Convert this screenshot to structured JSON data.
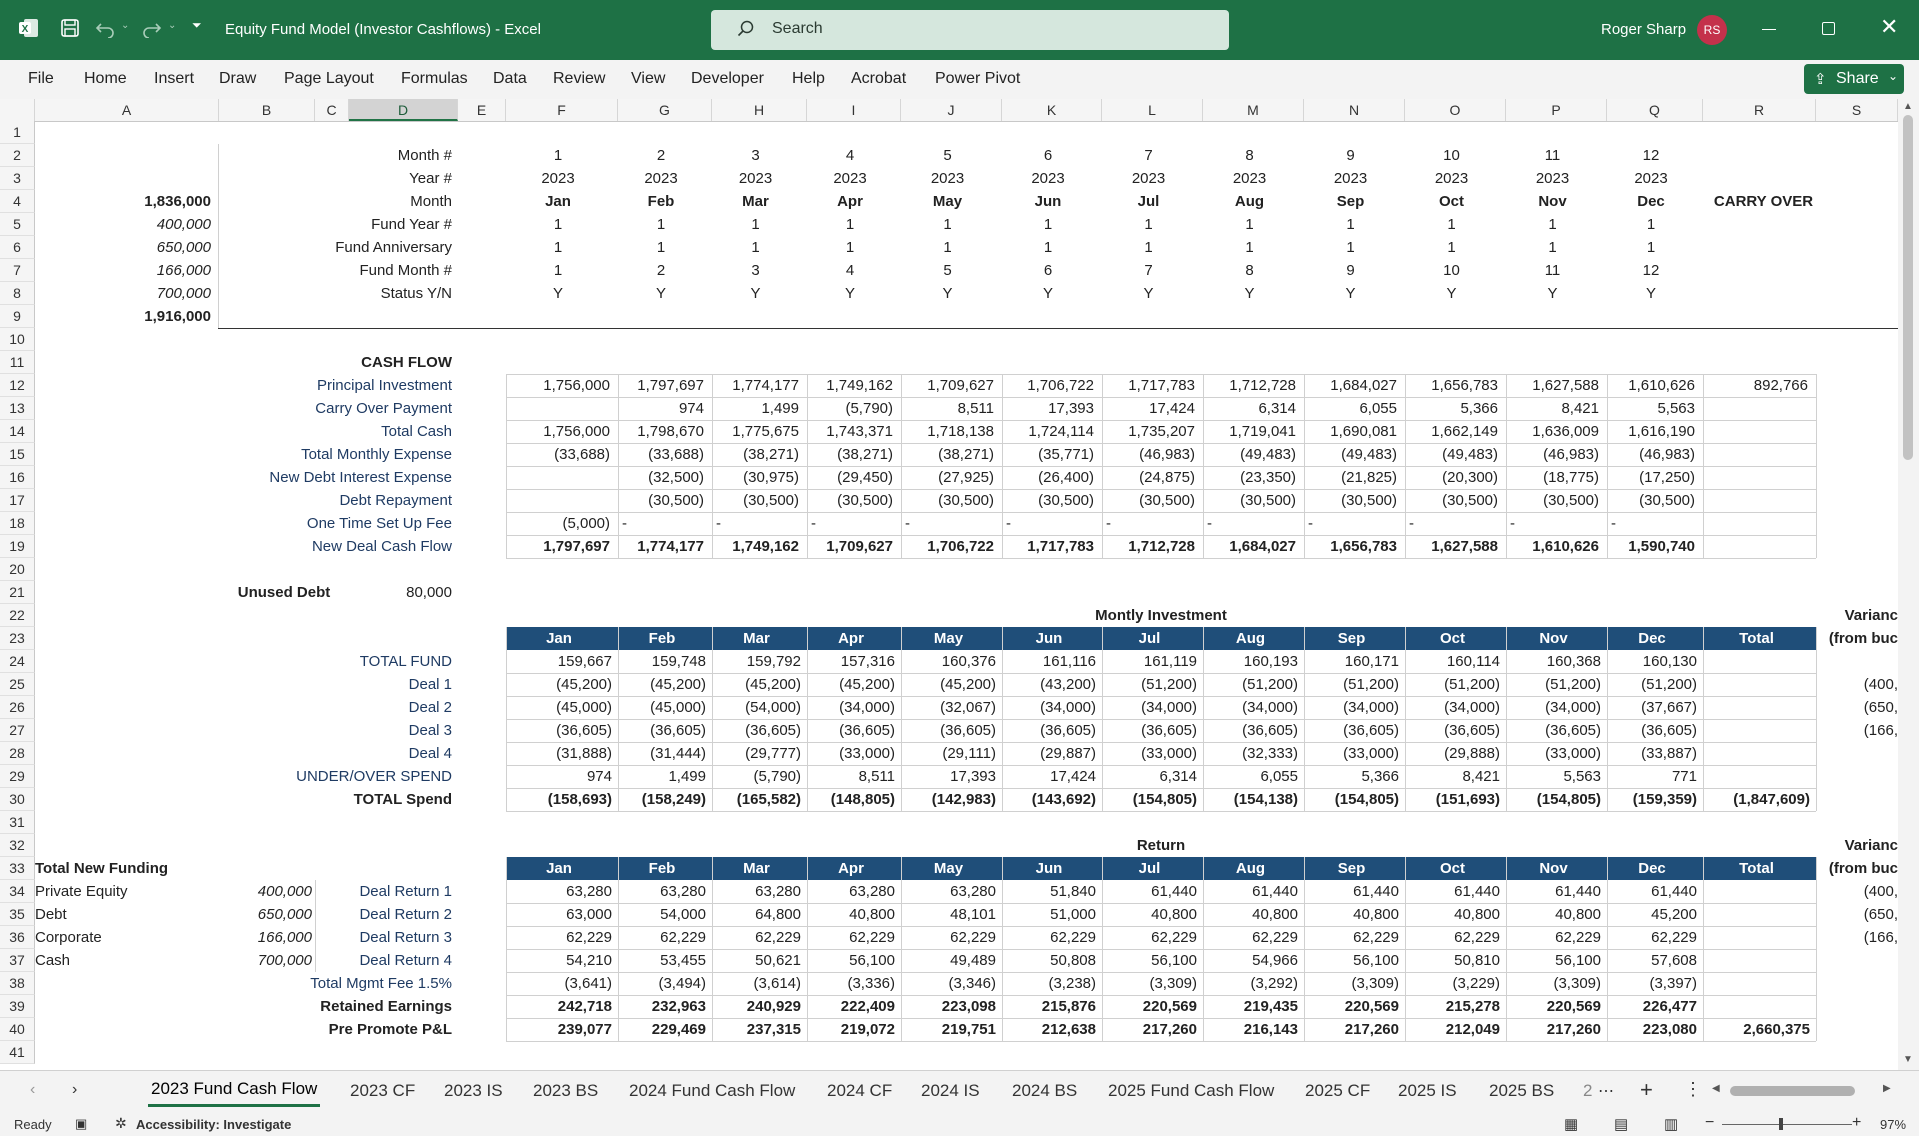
{
  "window": {
    "title": "Equity Fund Model (Investor Cashflows)  -  Excel",
    "user_name": "Roger Sharp",
    "user_initials": "RS",
    "search_placeholder": "Search"
  },
  "ribbon": {
    "tabs": [
      "File",
      "Home",
      "Insert",
      "Draw",
      "Page Layout",
      "Formulas",
      "Data",
      "Review",
      "View",
      "Developer",
      "Help",
      "Acrobat",
      "Power Pivot"
    ],
    "share_label": "Share"
  },
  "columns": [
    "A",
    "B",
    "C",
    "D",
    "E",
    "F",
    "G",
    "H",
    "I",
    "J",
    "K",
    "L",
    "M",
    "N",
    "O",
    "P",
    "Q",
    "R",
    "S"
  ],
  "row_numbers": [
    "1",
    "2",
    "3",
    "4",
    "5",
    "6",
    "7",
    "8",
    "9",
    "10",
    "11",
    "12",
    "13",
    "14",
    "15",
    "16",
    "17",
    "18",
    "19",
    "20",
    "21",
    "22",
    "23",
    "24",
    "25",
    "26",
    "27",
    "28",
    "29",
    "30",
    "31",
    "32",
    "33",
    "34",
    "35",
    "36",
    "37",
    "38",
    "39",
    "40",
    "41"
  ],
  "header_block": {
    "labels": [
      "Month #",
      "Year #",
      "Month",
      "Fund Year #",
      "Fund Anniversary",
      "Fund Month #",
      "Status Y/N"
    ],
    "a_values": [
      "1,836,000",
      "400,000",
      "650,000",
      "166,000",
      "700,000",
      "1,916,000"
    ],
    "month_num": [
      "1",
      "2",
      "3",
      "4",
      "5",
      "6",
      "7",
      "8",
      "9",
      "10",
      "11",
      "12"
    ],
    "year": [
      "2023",
      "2023",
      "2023",
      "2023",
      "2023",
      "2023",
      "2023",
      "2023",
      "2023",
      "2023",
      "2023",
      "2023"
    ],
    "month": [
      "Jan",
      "Feb",
      "Mar",
      "Apr",
      "May",
      "Jun",
      "Jul",
      "Aug",
      "Sep",
      "Oct",
      "Nov",
      "Dec"
    ],
    "fund_year": [
      "1",
      "1",
      "1",
      "1",
      "1",
      "1",
      "1",
      "1",
      "1",
      "1",
      "1",
      "1"
    ],
    "fund_anniv": [
      "1",
      "1",
      "1",
      "1",
      "1",
      "1",
      "1",
      "1",
      "1",
      "1",
      "1",
      "1"
    ],
    "fund_month": [
      "1",
      "2",
      "3",
      "4",
      "5",
      "6",
      "7",
      "8",
      "9",
      "10",
      "11",
      "12"
    ],
    "status": [
      "Y",
      "Y",
      "Y",
      "Y",
      "Y",
      "Y",
      "Y",
      "Y",
      "Y",
      "Y",
      "Y",
      "Y"
    ],
    "carry_over": "CARRY OVER"
  },
  "cash_flow": {
    "title": "CASH FLOW",
    "rows": [
      {
        "label": "Principal Investment",
        "values": [
          "1,756,000",
          "1,797,697",
          "1,774,177",
          "1,749,162",
          "1,709,627",
          "1,706,722",
          "1,717,783",
          "1,712,728",
          "1,684,027",
          "1,656,783",
          "1,627,588",
          "1,610,626",
          "892,766"
        ]
      },
      {
        "label": "Carry Over Payment",
        "values": [
          "",
          "974",
          "1,499",
          "(5,790)",
          "8,511",
          "17,393",
          "17,424",
          "6,314",
          "6,055",
          "5,366",
          "8,421",
          "5,563",
          ""
        ]
      },
      {
        "label": "Total Cash",
        "values": [
          "1,756,000",
          "1,798,670",
          "1,775,675",
          "1,743,371",
          "1,718,138",
          "1,724,114",
          "1,735,207",
          "1,719,041",
          "1,690,081",
          "1,662,149",
          "1,636,009",
          "1,616,190",
          ""
        ]
      },
      {
        "label": "Total Monthly Expense",
        "values": [
          "(33,688)",
          "(33,688)",
          "(38,271)",
          "(38,271)",
          "(38,271)",
          "(35,771)",
          "(46,983)",
          "(49,483)",
          "(49,483)",
          "(49,483)",
          "(46,983)",
          "(46,983)",
          ""
        ]
      },
      {
        "label": "New Debt Interest Expense",
        "values": [
          "",
          "(32,500)",
          "(30,975)",
          "(29,450)",
          "(27,925)",
          "(26,400)",
          "(24,875)",
          "(23,350)",
          "(21,825)",
          "(20,300)",
          "(18,775)",
          "(17,250)",
          ""
        ]
      },
      {
        "label": "Debt Repayment",
        "values": [
          "",
          "(30,500)",
          "(30,500)",
          "(30,500)",
          "(30,500)",
          "(30,500)",
          "(30,500)",
          "(30,500)",
          "(30,500)",
          "(30,500)",
          "(30,500)",
          "(30,500)",
          ""
        ]
      },
      {
        "label": "One Time Set Up Fee",
        "values": [
          "(5,000)",
          "-",
          "-",
          "-",
          "-",
          "-",
          "-",
          "-",
          "-",
          "-",
          "-",
          "-",
          ""
        ]
      },
      {
        "label": "New Deal Cash Flow",
        "values": [
          "1,797,697",
          "1,774,177",
          "1,749,162",
          "1,709,627",
          "1,706,722",
          "1,717,783",
          "1,712,728",
          "1,684,027",
          "1,656,783",
          "1,627,588",
          "1,610,626",
          "1,590,740",
          ""
        ]
      }
    ],
    "unused_debt_label": "Unused Debt",
    "unused_debt_value": "80,000"
  },
  "investment": {
    "title": "Montly Investment",
    "variance_label": "Varianc",
    "variance_sub": "(from buc",
    "header": [
      "Jan",
      "Feb",
      "Mar",
      "Apr",
      "May",
      "Jun",
      "Jul",
      "Aug",
      "Sep",
      "Oct",
      "Nov",
      "Dec",
      "Total"
    ],
    "rows": [
      {
        "label": "TOTAL FUND",
        "values": [
          "159,667",
          "159,748",
          "159,792",
          "157,316",
          "160,376",
          "161,116",
          "161,119",
          "160,193",
          "160,171",
          "160,114",
          "160,368",
          "160,130",
          ""
        ],
        "variance": ""
      },
      {
        "label": "Deal 1",
        "values": [
          "(45,200)",
          "(45,200)",
          "(45,200)",
          "(45,200)",
          "(45,200)",
          "(43,200)",
          "(51,200)",
          "(51,200)",
          "(51,200)",
          "(51,200)",
          "(51,200)",
          "(51,200)",
          ""
        ],
        "variance": "(400,"
      },
      {
        "label": "Deal 2",
        "values": [
          "(45,000)",
          "(45,000)",
          "(54,000)",
          "(34,000)",
          "(32,067)",
          "(34,000)",
          "(34,000)",
          "(34,000)",
          "(34,000)",
          "(34,000)",
          "(34,000)",
          "(37,667)",
          ""
        ],
        "variance": "(650,"
      },
      {
        "label": "Deal 3",
        "values": [
          "(36,605)",
          "(36,605)",
          "(36,605)",
          "(36,605)",
          "(36,605)",
          "(36,605)",
          "(36,605)",
          "(36,605)",
          "(36,605)",
          "(36,605)",
          "(36,605)",
          "(36,605)",
          ""
        ],
        "variance": "(166,"
      },
      {
        "label": "Deal 4",
        "values": [
          "(31,888)",
          "(31,444)",
          "(29,777)",
          "(33,000)",
          "(29,111)",
          "(29,887)",
          "(33,000)",
          "(32,333)",
          "(33,000)",
          "(29,888)",
          "(33,000)",
          "(33,887)",
          ""
        ],
        "variance": ""
      },
      {
        "label": "UNDER/OVER SPEND",
        "values": [
          "974",
          "1,499",
          "(5,790)",
          "8,511",
          "17,393",
          "17,424",
          "6,314",
          "6,055",
          "5,366",
          "8,421",
          "5,563",
          "771",
          ""
        ],
        "variance": ""
      },
      {
        "label": "TOTAL Spend",
        "values": [
          "(158,693)",
          "(158,249)",
          "(165,582)",
          "(148,805)",
          "(142,983)",
          "(143,692)",
          "(154,805)",
          "(154,138)",
          "(154,805)",
          "(151,693)",
          "(154,805)",
          "(159,359)",
          "(1,847,609)"
        ],
        "variance": ""
      }
    ]
  },
  "returns": {
    "title": "Return",
    "variance_label": "Varianc",
    "variance_sub": "(from buc",
    "header": [
      "Jan",
      "Feb",
      "Mar",
      "Apr",
      "May",
      "Jun",
      "Jul",
      "Aug",
      "Sep",
      "Oct",
      "Nov",
      "Dec",
      "Total"
    ],
    "rows": [
      {
        "label": "Deal Return 1",
        "values": [
          "63,280",
          "63,280",
          "63,280",
          "63,280",
          "63,280",
          "51,840",
          "61,440",
          "61,440",
          "61,440",
          "61,440",
          "61,440",
          "61,440",
          ""
        ],
        "variance": "(400,"
      },
      {
        "label": "Deal Return 2",
        "values": [
          "63,000",
          "54,000",
          "64,800",
          "40,800",
          "48,101",
          "51,000",
          "40,800",
          "40,800",
          "40,800",
          "40,800",
          "40,800",
          "45,200",
          ""
        ],
        "variance": "(650,"
      },
      {
        "label": "Deal Return 3",
        "values": [
          "62,229",
          "62,229",
          "62,229",
          "62,229",
          "62,229",
          "62,229",
          "62,229",
          "62,229",
          "62,229",
          "62,229",
          "62,229",
          "62,229",
          ""
        ],
        "variance": "(166,"
      },
      {
        "label": "Deal Return 4",
        "values": [
          "54,210",
          "53,455",
          "50,621",
          "56,100",
          "49,489",
          "50,808",
          "56,100",
          "54,966",
          "56,100",
          "50,810",
          "56,100",
          "57,608",
          ""
        ],
        "variance": ""
      },
      {
        "label": "Total Mgmt Fee 1.5%",
        "values": [
          "(3,641)",
          "(3,494)",
          "(3,614)",
          "(3,336)",
          "(3,346)",
          "(3,238)",
          "(3,309)",
          "(3,292)",
          "(3,309)",
          "(3,229)",
          "(3,309)",
          "(3,397)",
          ""
        ],
        "variance": ""
      },
      {
        "label": "Retained Earnings",
        "values": [
          "242,718",
          "232,963",
          "240,929",
          "222,409",
          "223,098",
          "215,876",
          "220,569",
          "219,435",
          "220,569",
          "215,278",
          "220,569",
          "226,477",
          ""
        ],
        "variance": ""
      },
      {
        "label": "Pre Promote P&L",
        "values": [
          "239,077",
          "229,469",
          "237,315",
          "219,072",
          "219,751",
          "212,638",
          "217,260",
          "216,143",
          "217,260",
          "212,049",
          "217,260",
          "223,080",
          "2,660,375"
        ],
        "variance": ""
      }
    ]
  },
  "funding": {
    "title": "Total New Funding",
    "items": [
      {
        "label": "Private Equity",
        "value": "400,000"
      },
      {
        "label": "Debt",
        "value": "650,000"
      },
      {
        "label": "Corporate",
        "value": "166,000"
      },
      {
        "label": "Cash",
        "value": "700,000"
      }
    ]
  },
  "sheets": [
    "2023 Fund Cash Flow",
    "2023 CF",
    "2023 IS",
    "2023 BS",
    "2024 Fund Cash Flow",
    "2024 CF",
    "2024 IS",
    "2024 BS",
    "2025 Fund Cash Flow",
    "2025 CF",
    "2025 IS",
    "2025 BS",
    "2"
  ],
  "status": {
    "ready": "Ready",
    "accessibility": "Accessibility: Investigate",
    "zoom": "97%"
  }
}
